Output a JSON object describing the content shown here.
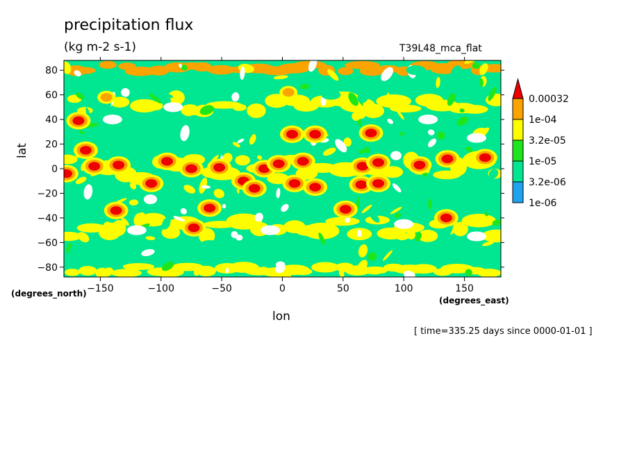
{
  "chart_data": {
    "type": "heatmap",
    "subtype": "filled-contour map",
    "title": "precipitation flux",
    "units": "(kg m-2 s-1)",
    "dataset_label": "T39L48_mca_flat",
    "xlabel": "lon",
    "xunit": "(degrees_east)",
    "ylabel": "lat",
    "yunit": "(degrees_north)",
    "xlim": [
      -180,
      180
    ],
    "ylim": [
      -88,
      88
    ],
    "xticks": [
      -150,
      -100,
      -50,
      0,
      50,
      100,
      150
    ],
    "yticks": [
      -80,
      -60,
      -40,
      -20,
      0,
      20,
      40,
      60,
      80
    ],
    "time_label": "[ time=335.25 days since 0000-01-01 ]",
    "colorbar": {
      "levels": [
        "1e-06",
        "3.2e-06",
        "1e-05",
        "3.2e-05",
        "1e-04",
        "0.00032"
      ],
      "colors": [
        "#1fa2f0",
        "#00e691",
        "#1ee61c",
        "#fdfd00",
        "#fba400",
        "#ee0000"
      ],
      "below_color": "#ffffff",
      "extend": "max"
    },
    "base_color": "#00e691",
    "features": [
      {
        "kind": "band",
        "lat": 0,
        "lat_half_width": 18,
        "level": "3.2e-05"
      },
      {
        "kind": "band",
        "lat": -48,
        "lat_half_width": 14,
        "level": "3.2e-05"
      },
      {
        "kind": "band",
        "lat": 52,
        "lat_half_width": 12,
        "level": "3.2e-05"
      },
      {
        "kind": "band",
        "lat": 82,
        "lat_half_width": 6,
        "level": "1e-04"
      },
      {
        "kind": "band",
        "lat": -82,
        "lat_half_width": 6,
        "level": "3.2e-05"
      },
      {
        "kind": "cell",
        "lon": 5,
        "lat": 62,
        "level": "1e-04"
      },
      {
        "kind": "cell",
        "lon": -145,
        "lat": 58,
        "level": "1e-04"
      },
      {
        "kind": "cell",
        "lon": 27,
        "lat": 28,
        "level": "0.00032"
      },
      {
        "kind": "cell",
        "lon": 73,
        "lat": 29,
        "level": "0.00032"
      },
      {
        "kind": "cell",
        "lon": 8,
        "lat": 28,
        "level": "0.00032"
      },
      {
        "kind": "cell",
        "lon": -168,
        "lat": 39,
        "level": "0.00032"
      },
      {
        "kind": "cell",
        "lon": -162,
        "lat": 15,
        "level": "0.00032"
      },
      {
        "kind": "cell",
        "lon": -155,
        "lat": 2,
        "level": "0.00032"
      },
      {
        "kind": "cell",
        "lon": -135,
        "lat": 3,
        "level": "0.00032"
      },
      {
        "kind": "cell",
        "lon": -95,
        "lat": 6,
        "level": "0.00032"
      },
      {
        "kind": "cell",
        "lon": -75,
        "lat": 0,
        "level": "0.00032"
      },
      {
        "kind": "cell",
        "lon": -52,
        "lat": 1,
        "level": "0.00032"
      },
      {
        "kind": "cell",
        "lon": -15,
        "lat": 0,
        "level": "0.00032"
      },
      {
        "kind": "cell",
        "lon": -3,
        "lat": 4,
        "level": "0.00032"
      },
      {
        "kind": "cell",
        "lon": 17,
        "lat": 6,
        "level": "0.00032"
      },
      {
        "kind": "cell",
        "lon": 66,
        "lat": 2,
        "level": "0.00032"
      },
      {
        "kind": "cell",
        "lon": 79,
        "lat": 5,
        "level": "0.00032"
      },
      {
        "kind": "cell",
        "lon": 113,
        "lat": 3,
        "level": "0.00032"
      },
      {
        "kind": "cell",
        "lon": 136,
        "lat": 8,
        "level": "0.00032"
      },
      {
        "kind": "cell",
        "lon": 167,
        "lat": 9,
        "level": "0.00032"
      },
      {
        "kind": "cell",
        "lon": -108,
        "lat": -12,
        "level": "0.00032"
      },
      {
        "kind": "cell",
        "lon": -32,
        "lat": -10,
        "level": "0.00032"
      },
      {
        "kind": "cell",
        "lon": -23,
        "lat": -16,
        "level": "0.00032"
      },
      {
        "kind": "cell",
        "lon": 10,
        "lat": -12,
        "level": "0.00032"
      },
      {
        "kind": "cell",
        "lon": 27,
        "lat": -15,
        "level": "0.00032"
      },
      {
        "kind": "cell",
        "lon": 65,
        "lat": -13,
        "level": "0.00032"
      },
      {
        "kind": "cell",
        "lon": 79,
        "lat": -12,
        "level": "0.00032"
      },
      {
        "kind": "cell",
        "lon": 52,
        "lat": -33,
        "level": "0.00032"
      },
      {
        "kind": "cell",
        "lon": -137,
        "lat": -34,
        "level": "0.00032"
      },
      {
        "kind": "cell",
        "lon": -60,
        "lat": -32,
        "level": "0.00032"
      },
      {
        "kind": "cell",
        "lon": -73,
        "lat": -48,
        "level": "0.00032"
      },
      {
        "kind": "cell",
        "lon": 135,
        "lat": -40,
        "level": "0.00032"
      },
      {
        "kind": "cell",
        "lon": -178,
        "lat": -4,
        "level": "0.00032"
      },
      {
        "kind": "patch",
        "lon": -140,
        "lat": 40,
        "level": "below"
      },
      {
        "kind": "patch",
        "lon": -90,
        "lat": 50,
        "level": "below"
      },
      {
        "kind": "patch",
        "lon": 120,
        "lat": 40,
        "level": "below"
      },
      {
        "kind": "patch",
        "lon": 160,
        "lat": 25,
        "level": "below"
      },
      {
        "kind": "patch",
        "lon": -120,
        "lat": -50,
        "level": "below"
      },
      {
        "kind": "patch",
        "lon": -10,
        "lat": -50,
        "level": "below"
      },
      {
        "kind": "patch",
        "lon": 160,
        "lat": -55,
        "level": "below"
      },
      {
        "kind": "patch",
        "lon": 100,
        "lat": -45,
        "level": "below"
      },
      {
        "kind": "patch",
        "lon": 40,
        "lat": 60,
        "level": "3.2e-06"
      },
      {
        "kind": "patch",
        "lon": 110,
        "lat": 80,
        "level": "3.2e-06"
      },
      {
        "kind": "patch",
        "lon": -60,
        "lat": -62,
        "level": "3.2e-06"
      }
    ]
  }
}
